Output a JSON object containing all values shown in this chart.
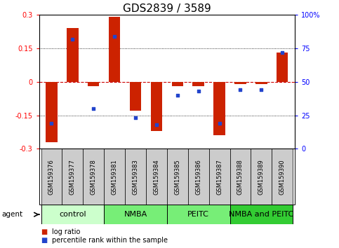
{
  "title": "GDS2839 / 3589",
  "samples": [
    "GSM159376",
    "GSM159377",
    "GSM159378",
    "GSM159381",
    "GSM159383",
    "GSM159384",
    "GSM159385",
    "GSM159386",
    "GSM159387",
    "GSM159388",
    "GSM159389",
    "GSM159390"
  ],
  "log_ratio": [
    -0.27,
    0.24,
    -0.02,
    0.29,
    -0.13,
    -0.22,
    -0.02,
    -0.02,
    -0.24,
    -0.01,
    -0.01,
    0.13
  ],
  "percentile_rank": [
    19,
    82,
    30,
    84,
    23,
    18,
    40,
    43,
    19,
    44,
    44,
    72
  ],
  "groups": [
    {
      "label": "control",
      "start": 0,
      "end": 3,
      "color": "#ccffcc"
    },
    {
      "label": "NMBA",
      "start": 3,
      "end": 6,
      "color": "#77ee77"
    },
    {
      "label": "PEITC",
      "start": 6,
      "end": 9,
      "color": "#77ee77"
    },
    {
      "label": "NMBA and PEITC",
      "start": 9,
      "end": 12,
      "color": "#33cc33"
    }
  ],
  "ylim": [
    -0.3,
    0.3
  ],
  "yticks": [
    -0.3,
    -0.15,
    0.0,
    0.15,
    0.3
  ],
  "ytick_labels_left": [
    "-0.3",
    "-0.15",
    "0",
    "0.15",
    "0.3"
  ],
  "ytick_labels_right": [
    "0",
    "25",
    "50",
    "75",
    "100%"
  ],
  "bar_color": "#cc2200",
  "dot_color": "#2244cc",
  "bar_width": 0.55,
  "sample_bg": "#cccccc",
  "tick_fontsize": 7,
  "group_fontsize": 8,
  "sample_fontsize": 6,
  "title_fontsize": 11
}
